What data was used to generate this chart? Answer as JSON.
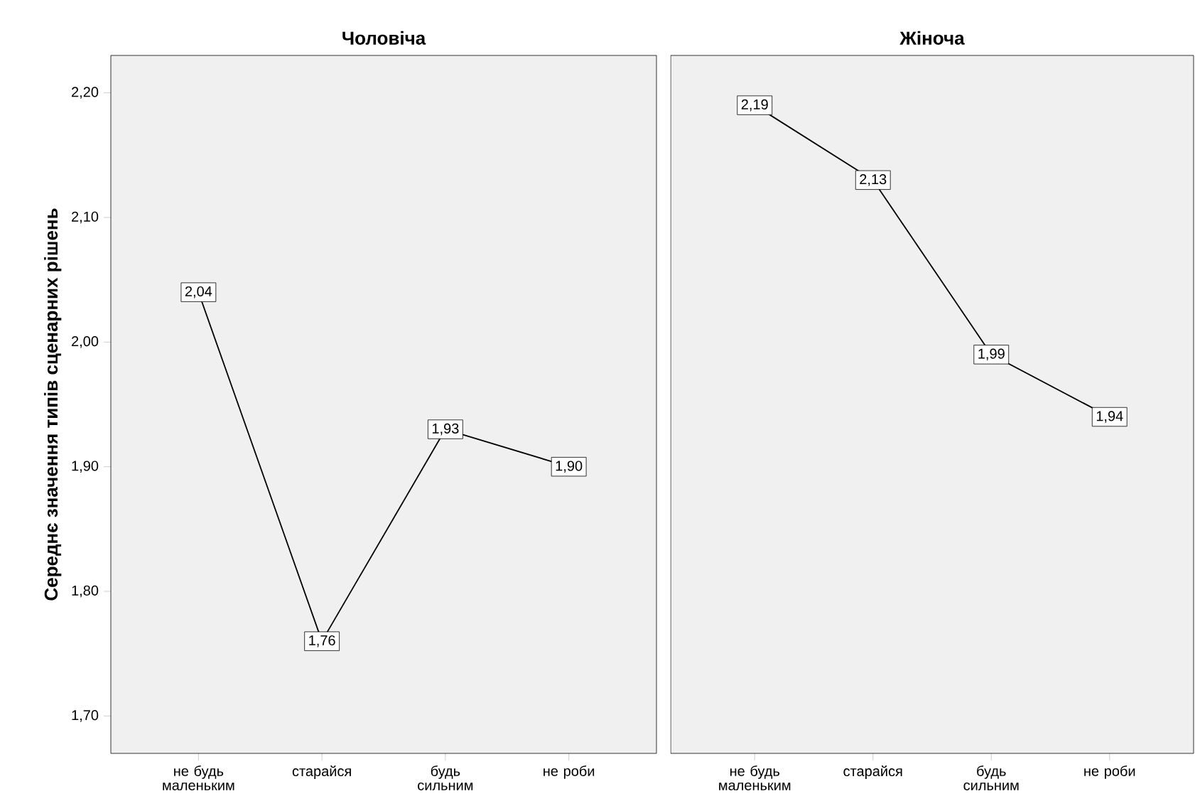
{
  "chart_data": [
    {
      "type": "line",
      "title": "Чоловіча",
      "ylabel": "Середнє значення типів сценарних рішень",
      "categories": [
        "не будь маленьким",
        "старайся",
        "будь сильним",
        "не роби"
      ],
      "values": [
        2.04,
        1.76,
        1.93,
        1.9
      ],
      "value_labels": [
        "2,04",
        "1,76",
        "1,93",
        "1,90"
      ],
      "color": "#000000",
      "ylim": [
        1.67,
        2.23
      ],
      "yticks": [
        {
          "value": 1.7,
          "label": "1,70"
        },
        {
          "value": 1.8,
          "label": "1,80"
        },
        {
          "value": 1.9,
          "label": "1,90"
        },
        {
          "value": 2.0,
          "label": "2,00"
        },
        {
          "value": 2.1,
          "label": "2,10"
        },
        {
          "value": 2.2,
          "label": "2,20"
        }
      ],
      "grid": false,
      "legend": false,
      "marker": "square",
      "line_style": "solid"
    },
    {
      "type": "line",
      "title": "Жіноча",
      "categories": [
        "не будь маленьким",
        "старайся",
        "будь сильним",
        "не роби"
      ],
      "values": [
        2.19,
        2.13,
        1.99,
        1.94
      ],
      "value_labels": [
        "2,19",
        "2,13",
        "1,99",
        "1,94"
      ],
      "color": "#000000",
      "ylim": [
        1.67,
        2.23
      ],
      "tick_labels": "x",
      "grid": false,
      "legend": false,
      "marker": "square",
      "line_style": "solid"
    }
  ]
}
